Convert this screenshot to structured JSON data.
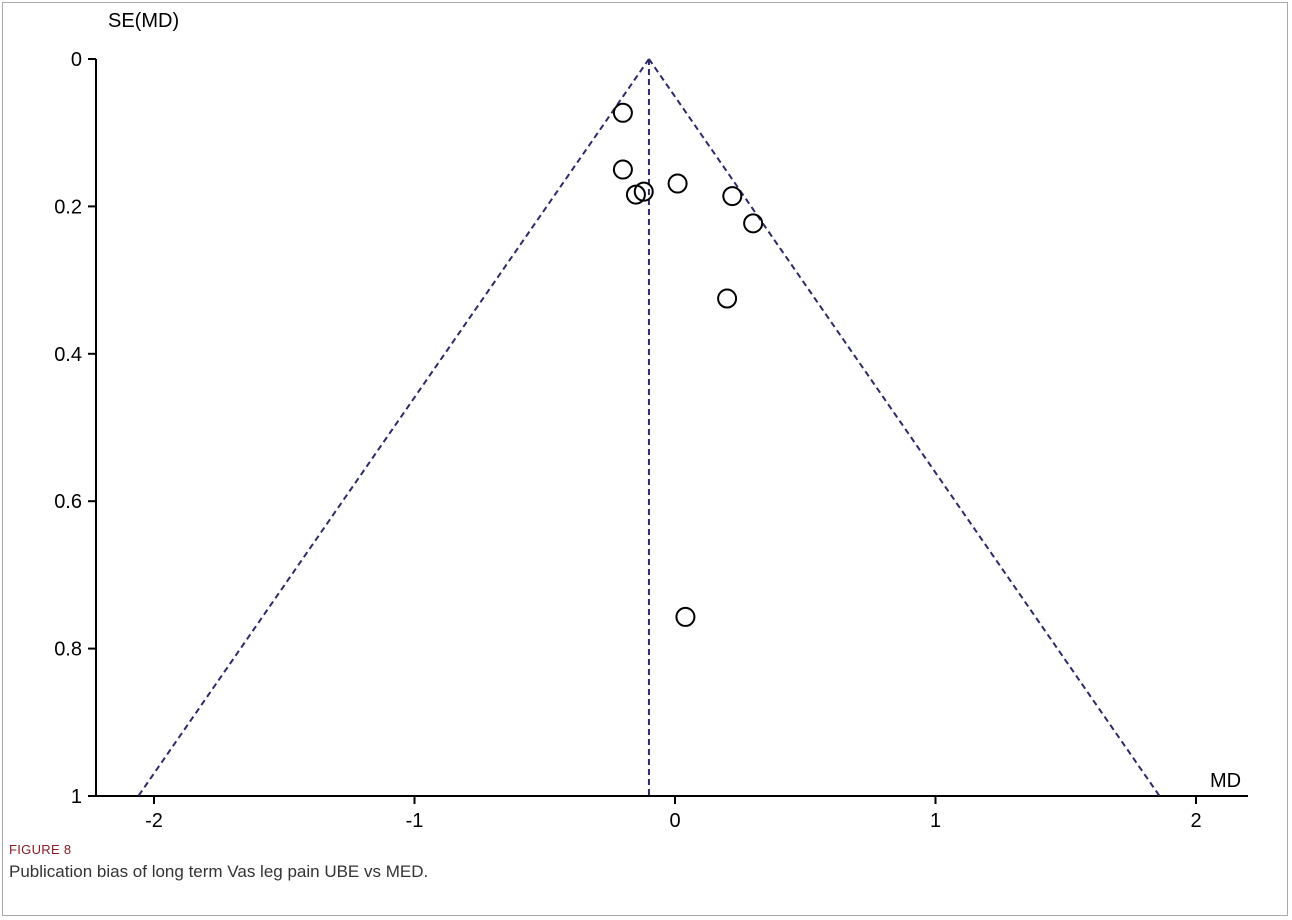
{
  "figure": {
    "label": "FIGURE 8",
    "caption": "Publication bias of long term Vas leg pain UBE vs MED."
  },
  "chart_data": {
    "type": "scatter",
    "subtype": "funnel-plot",
    "xlabel": "MD",
    "ylabel": "SE(MD)",
    "xlim": [
      -2.2,
      2.2
    ],
    "ylim": [
      0,
      1
    ],
    "y_inverted": true,
    "xticks": [
      -2,
      -1,
      0,
      1,
      2
    ],
    "yticks": [
      0,
      0.2,
      0.4,
      0.6,
      0.8,
      1
    ],
    "pooled_md": -0.1,
    "ci_multiplier": 1.96,
    "points": [
      {
        "x": -0.2,
        "y": 0.073
      },
      {
        "x": -0.2,
        "y": 0.15
      },
      {
        "x": -0.15,
        "y": 0.184
      },
      {
        "x": -0.12,
        "y": 0.18
      },
      {
        "x": 0.01,
        "y": 0.169
      },
      {
        "x": 0.22,
        "y": 0.186
      },
      {
        "x": 0.3,
        "y": 0.223
      },
      {
        "x": 0.2,
        "y": 0.325
      },
      {
        "x": 0.04,
        "y": 0.757
      }
    ],
    "colors": {
      "points": "#000000",
      "funnel": "#2b2b6b",
      "axis": "#000000"
    },
    "grid": false
  }
}
